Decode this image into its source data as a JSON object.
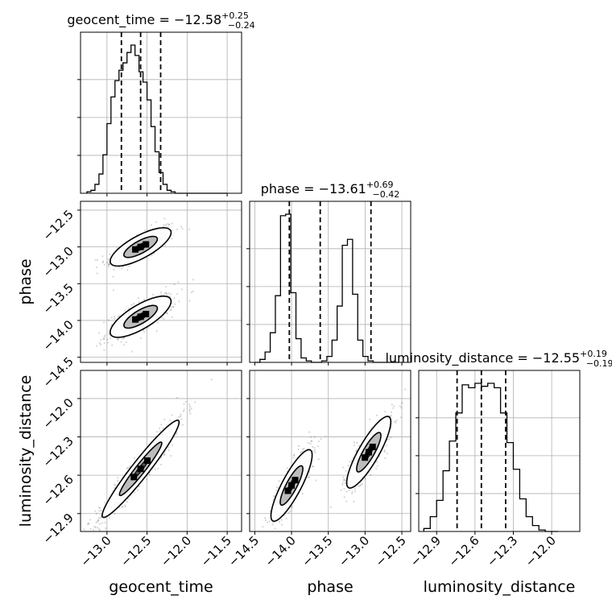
{
  "chart_data": {
    "type": "corner",
    "parameters": [
      "geocent_time",
      "phase",
      "luminosity_distance"
    ],
    "grid": true,
    "ranges": {
      "geocent_time": [
        -13.33,
        -11.32
      ],
      "phase": [
        -14.57,
        -12.38
      ],
      "luminosity_distance": [
        -13.04,
        -11.78
      ]
    },
    "ticks": {
      "geocent_time": [
        -13.0,
        -12.5,
        -12.0,
        -11.5
      ],
      "phase": [
        -14.5,
        -14.0,
        -13.5,
        -13.0,
        -12.5
      ],
      "luminosity_distance": [
        -12.9,
        -12.6,
        -12.3,
        -12.0
      ]
    },
    "tick_labels": {
      "geocent_time": [
        "−13.0",
        "−12.5",
        "−12.0",
        "−11.5"
      ],
      "phase": [
        "−14.5",
        "−14.0",
        "−13.5",
        "−13.0",
        "−12.5"
      ],
      "luminosity_distance": [
        "−12.9",
        "−12.6",
        "−12.3",
        "−12.0"
      ]
    },
    "titles": [
      {
        "param": "geocent_time",
        "label": "geocent_time",
        "median": "−12.58",
        "plus": "+0.25",
        "minus": "−0.24"
      },
      {
        "param": "phase",
        "label": "phase",
        "median": "−13.61",
        "plus": "+0.69",
        "minus": "−0.42"
      },
      {
        "param": "luminosity_distance",
        "label": "luminosity_distance",
        "median": "−12.55",
        "plus": "+0.19",
        "minus": "−0.19"
      }
    ],
    "marginals": {
      "geocent_time": {
        "edges": [
          -13.25,
          -13.2,
          -13.15,
          -13.1,
          -13.05,
          -13.0,
          -12.95,
          -12.9,
          -12.85,
          -12.8,
          -12.75,
          -12.7,
          -12.65,
          -12.6,
          -12.55,
          -12.5,
          -12.45,
          -12.4,
          -12.35,
          -12.3,
          -12.25,
          -12.2,
          -12.15,
          -12.1,
          -12.05,
          -12.0,
          -11.95,
          -11.9,
          -11.85,
          -11.8,
          -11.75,
          -11.7,
          -11.65,
          -11.6,
          -11.55,
          -11.5
        ],
        "counts": [
          0.01,
          0.02,
          0.06,
          0.13,
          0.26,
          0.47,
          0.65,
          0.76,
          0.83,
          0.88,
          0.95,
          1.0,
          0.93,
          0.82,
          0.75,
          0.63,
          0.45,
          0.28,
          0.14,
          0.06,
          0.02,
          0.01,
          0.0,
          0.0,
          0.0,
          0.0,
          0.0,
          0.0,
          0.0,
          0.0,
          0.0,
          0.0,
          0.0,
          0.0,
          0.0
        ],
        "quantiles": [
          -12.82,
          -12.58,
          -12.33
        ]
      },
      "phase": {
        "edges": [
          -14.5,
          -14.43,
          -14.36,
          -14.29,
          -14.22,
          -14.15,
          -14.08,
          -14.01,
          -13.94,
          -13.87,
          -13.8,
          -13.73,
          -13.66,
          -13.59,
          -13.52,
          -13.45,
          -13.38,
          -13.31,
          -13.24,
          -13.17,
          -13.1,
          -13.03,
          -12.96,
          -12.89,
          -12.82,
          -12.75,
          -12.68,
          -12.61,
          -12.54
        ],
        "counts": [
          0.0,
          0.02,
          0.07,
          0.2,
          0.45,
          0.99,
          1.0,
          0.47,
          0.16,
          0.03,
          0.01,
          0.0,
          0.0,
          0.01,
          0.04,
          0.15,
          0.38,
          0.79,
          0.83,
          0.46,
          0.15,
          0.04,
          0.01,
          0.0,
          0.0,
          0.0,
          0.0,
          0.0
        ],
        "quantiles": [
          -14.03,
          -13.61,
          -12.92
        ]
      },
      "luminosity_distance": {
        "edges": [
          -13.0,
          -12.95,
          -12.9,
          -12.85,
          -12.8,
          -12.75,
          -12.7,
          -12.65,
          -12.6,
          -12.55,
          -12.5,
          -12.45,
          -12.4,
          -12.35,
          -12.3,
          -12.25,
          -12.2,
          -12.15,
          -12.1,
          -12.05,
          -12.0,
          -11.95
        ],
        "counts": [
          0.02,
          0.1,
          0.21,
          0.41,
          0.61,
          0.8,
          0.99,
          0.97,
          1.0,
          0.98,
          1.0,
          0.97,
          0.8,
          0.6,
          0.42,
          0.22,
          0.1,
          0.04,
          0.01,
          0.0,
          0.0
        ],
        "quantiles": [
          -12.74,
          -12.55,
          -12.36
        ]
      }
    },
    "joint": [
      {
        "x": "geocent_time",
        "y": "phase",
        "modes": [
          {
            "cx": -12.58,
            "cy": -13.0,
            "sx": 0.19,
            "sy": 0.13,
            "rho": 0.75,
            "w": 0.5
          },
          {
            "cx": -12.58,
            "cy": -13.95,
            "sx": 0.19,
            "sy": 0.14,
            "rho": 0.75,
            "w": 0.5
          }
        ],
        "contour_levels": [
          0.39,
          0.86
        ]
      },
      {
        "x": "geocent_time",
        "y": "luminosity_distance",
        "modes": [
          {
            "cx": -12.58,
            "cy": -12.55,
            "sx": 0.24,
            "sy": 0.19,
            "rho": 0.96,
            "w": 1.0
          }
        ],
        "contour_levels": [
          0.39,
          0.86
        ]
      },
      {
        "x": "phase",
        "y": "luminosity_distance",
        "modes": [
          {
            "cx": -14.0,
            "cy": -12.68,
            "sx": 0.14,
            "sy": 0.14,
            "rho": 0.85,
            "w": 0.5
          },
          {
            "cx": -12.95,
            "cy": -12.42,
            "sx": 0.15,
            "sy": 0.14,
            "rho": 0.85,
            "w": 0.5
          }
        ],
        "contour_levels": [
          0.39,
          0.86
        ]
      }
    ]
  },
  "colors": {
    "axes": "#000000",
    "grid": "#b0b0b0",
    "points": "#000000",
    "background": "#ffffff"
  }
}
